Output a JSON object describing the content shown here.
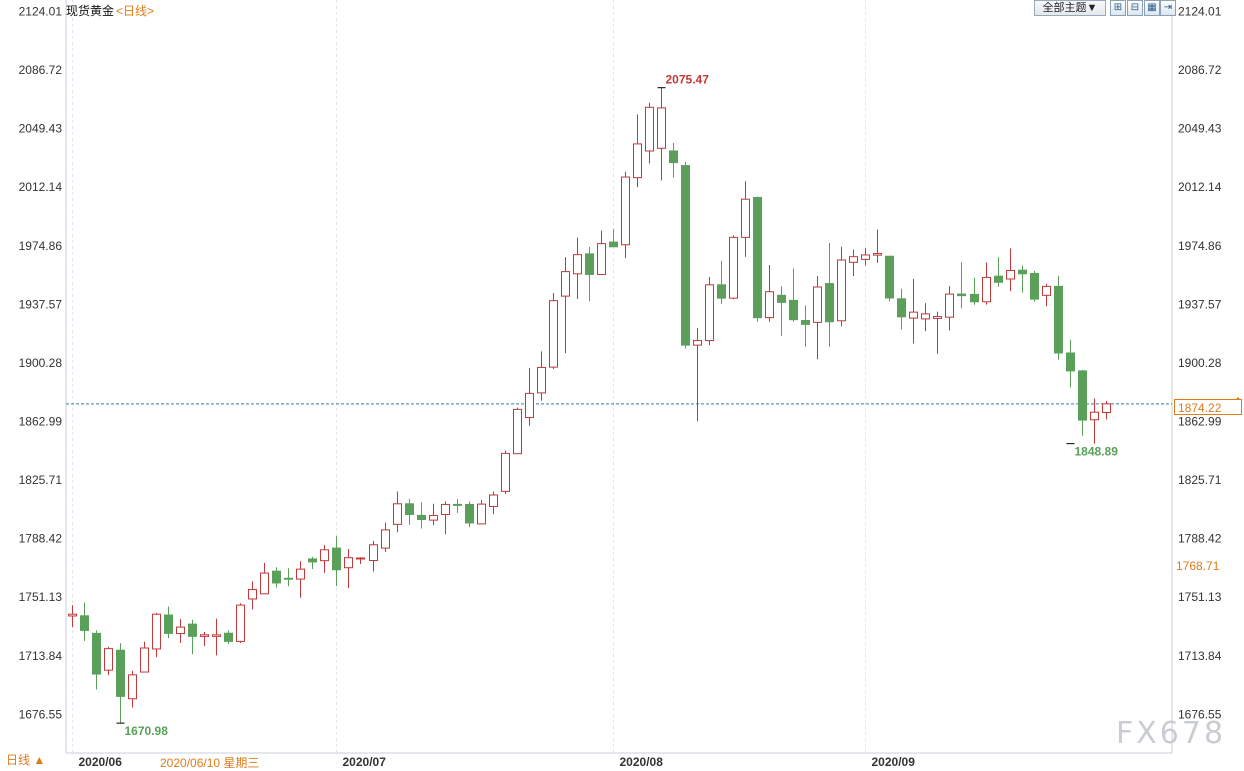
{
  "header": {
    "title": "现货黄金",
    "period_link": "<日线>",
    "theme_button": "全部主题▼",
    "tool_icons": [
      "zoom-in-icon",
      "zoom-out-icon",
      "grid-icon",
      "scroll-end-icon"
    ]
  },
  "footer": {
    "period_tab": "日线 ▲",
    "cursor_date": "2020/06/10 星期三",
    "watermark": "FX678"
  },
  "colors": {
    "up": "#c0393b",
    "down": "#5aa05a",
    "grid": "#dfe7ee",
    "axis_text": "#333333",
    "accent": "#e07b1a",
    "last_price_line": "#3a7fa8"
  },
  "chart_data": {
    "type": "candlestick",
    "title": "现货黄金",
    "ylim": [
      1651.96,
      2131.3
    ],
    "y_ticks": [
      2124.01,
      2086.72,
      2049.43,
      2012.14,
      1974.86,
      1937.57,
      1900.28,
      1862.99,
      1825.71,
      1788.42,
      1751.13,
      1713.84,
      1676.55
    ],
    "x_month_labels": [
      {
        "index": 0,
        "label": "2020/06"
      },
      {
        "index": 22,
        "label": "2020/07"
      },
      {
        "index": 45,
        "label": "2020/08"
      },
      {
        "index": 66,
        "label": "2020/09"
      }
    ],
    "last_price": 1874.22,
    "marker_price": 1768.71,
    "annotations": [
      {
        "index": 49,
        "label": "2075.47",
        "price": 2075.47,
        "color": "up"
      },
      {
        "index": 4,
        "label": "1670.98",
        "price": 1670.98,
        "color": "down"
      },
      {
        "index": 83,
        "label": "1848.89",
        "price": 1848.89,
        "color": "down"
      }
    ],
    "candles": [
      {
        "o": 1739.2,
        "h": 1746.0,
        "l": 1732.0,
        "c": 1740.3
      },
      {
        "o": 1739.3,
        "h": 1747.8,
        "l": 1723.3,
        "c": 1730.0
      },
      {
        "o": 1728.1,
        "h": 1730.0,
        "l": 1692.5,
        "c": 1702.2
      },
      {
        "o": 1704.7,
        "h": 1719.5,
        "l": 1701.5,
        "c": 1718.4
      },
      {
        "o": 1717.4,
        "h": 1721.9,
        "l": 1670.98,
        "c": 1688.0
      },
      {
        "o": 1686.5,
        "h": 1704.2,
        "l": 1680.9,
        "c": 1701.7
      },
      {
        "o": 1703.5,
        "h": 1722.8,
        "l": 1703.5,
        "c": 1718.8
      },
      {
        "o": 1718.2,
        "h": 1741.1,
        "l": 1712.9,
        "c": 1740.3
      },
      {
        "o": 1739.8,
        "h": 1745.1,
        "l": 1725.0,
        "c": 1728.1
      },
      {
        "o": 1728.0,
        "h": 1737.2,
        "l": 1722.0,
        "c": 1732.1
      },
      {
        "o": 1734.0,
        "h": 1736.8,
        "l": 1714.8,
        "c": 1726.2
      },
      {
        "o": 1726.2,
        "h": 1729.1,
        "l": 1720.1,
        "c": 1727.2
      },
      {
        "o": 1726.2,
        "h": 1737.4,
        "l": 1714.1,
        "c": 1727.2
      },
      {
        "o": 1728.2,
        "h": 1730.0,
        "l": 1721.3,
        "c": 1723.0
      },
      {
        "o": 1723.0,
        "h": 1747.3,
        "l": 1722.0,
        "c": 1746.1
      },
      {
        "o": 1750.0,
        "h": 1761.3,
        "l": 1743.2,
        "c": 1756.0
      },
      {
        "o": 1753.3,
        "h": 1773.0,
        "l": 1753.3,
        "c": 1766.5
      },
      {
        "o": 1767.7,
        "h": 1770.2,
        "l": 1757.2,
        "c": 1760.2
      },
      {
        "o": 1763.2,
        "h": 1769.6,
        "l": 1758.1,
        "c": 1762.7
      },
      {
        "o": 1762.7,
        "h": 1774.1,
        "l": 1750.8,
        "c": 1769.0
      },
      {
        "o": 1775.5,
        "h": 1776.8,
        "l": 1769.1,
        "c": 1773.6
      },
      {
        "o": 1774.4,
        "h": 1784.3,
        "l": 1766.6,
        "c": 1781.3
      },
      {
        "o": 1782.4,
        "h": 1789.9,
        "l": 1758.2,
        "c": 1768.6
      },
      {
        "o": 1769.9,
        "h": 1781.8,
        "l": 1757.0,
        "c": 1776.3
      },
      {
        "o": 1776.1,
        "h": 1776.6,
        "l": 1772.3,
        "c": 1776.1
      },
      {
        "o": 1774.5,
        "h": 1787.0,
        "l": 1767.5,
        "c": 1784.5
      },
      {
        "o": 1782.4,
        "h": 1798.6,
        "l": 1780.0,
        "c": 1794.0
      },
      {
        "o": 1797.5,
        "h": 1818.4,
        "l": 1792.5,
        "c": 1810.6
      },
      {
        "o": 1810.6,
        "h": 1813.6,
        "l": 1797.2,
        "c": 1803.8
      },
      {
        "o": 1803.2,
        "h": 1811.6,
        "l": 1794.9,
        "c": 1800.6
      },
      {
        "o": 1800.2,
        "h": 1810.6,
        "l": 1796.9,
        "c": 1803.2
      },
      {
        "o": 1803.8,
        "h": 1812.2,
        "l": 1791.2,
        "c": 1810.2
      },
      {
        "o": 1810.2,
        "h": 1813.6,
        "l": 1804.8,
        "c": 1810.1
      },
      {
        "o": 1810.2,
        "h": 1812.1,
        "l": 1795.7,
        "c": 1798.4
      },
      {
        "o": 1797.8,
        "h": 1813.1,
        "l": 1797.8,
        "c": 1810.4
      },
      {
        "o": 1808.9,
        "h": 1818.4,
        "l": 1804.0,
        "c": 1816.2
      },
      {
        "o": 1818.5,
        "h": 1844.5,
        "l": 1816.8,
        "c": 1842.7
      },
      {
        "o": 1842.5,
        "h": 1871.8,
        "l": 1842.5,
        "c": 1870.7
      },
      {
        "o": 1865.5,
        "h": 1897.1,
        "l": 1860.3,
        "c": 1880.9
      },
      {
        "o": 1881.2,
        "h": 1907.6,
        "l": 1876.2,
        "c": 1897.4
      },
      {
        "o": 1897.6,
        "h": 1944.8,
        "l": 1896.4,
        "c": 1939.9
      },
      {
        "o": 1942.8,
        "h": 1967.6,
        "l": 1906.6,
        "c": 1958.4
      },
      {
        "o": 1957.0,
        "h": 1980.0,
        "l": 1941.0,
        "c": 1969.2
      },
      {
        "o": 1969.7,
        "h": 1974.1,
        "l": 1939.5,
        "c": 1956.6
      },
      {
        "o": 1956.6,
        "h": 1984.6,
        "l": 1956.3,
        "c": 1976.2
      },
      {
        "o": 1977.2,
        "h": 1985.4,
        "l": 1975.5,
        "c": 1974.2
      },
      {
        "o": 1975.5,
        "h": 2022.0,
        "l": 1967.1,
        "c": 2018.6
      },
      {
        "o": 2018.2,
        "h": 2058.5,
        "l": 2012.1,
        "c": 2039.7
      },
      {
        "o": 2035.2,
        "h": 2066.0,
        "l": 2027.2,
        "c": 2063.0
      },
      {
        "o": 2036.9,
        "h": 2075.47,
        "l": 2016.5,
        "c": 2062.6
      },
      {
        "o": 2035.2,
        "h": 2040.3,
        "l": 2018.2,
        "c": 2027.8
      },
      {
        "o": 2025.9,
        "h": 2028.2,
        "l": 1909.4,
        "c": 1911.6
      },
      {
        "o": 1911.6,
        "h": 1922.5,
        "l": 1863.2,
        "c": 1914.5
      },
      {
        "o": 1914.5,
        "h": 1955.0,
        "l": 1911.6,
        "c": 1950.0
      },
      {
        "o": 1950.0,
        "h": 1965.3,
        "l": 1937.9,
        "c": 1941.5
      },
      {
        "o": 1941.5,
        "h": 1981.5,
        "l": 1940.8,
        "c": 1980.2
      },
      {
        "o": 1980.2,
        "h": 2016.0,
        "l": 1967.8,
        "c": 2004.5
      },
      {
        "o": 2005.6,
        "h": 2006.2,
        "l": 1926.5,
        "c": 1929.1
      },
      {
        "o": 1929.1,
        "h": 1962.6,
        "l": 1926.5,
        "c": 1945.6
      },
      {
        "o": 1943.3,
        "h": 1949.1,
        "l": 1917.5,
        "c": 1938.8
      },
      {
        "o": 1940.1,
        "h": 1960.4,
        "l": 1926.5,
        "c": 1927.8
      },
      {
        "o": 1927.3,
        "h": 1936.9,
        "l": 1910.5,
        "c": 1924.8
      },
      {
        "o": 1926.1,
        "h": 1955.6,
        "l": 1902.6,
        "c": 1948.6
      },
      {
        "o": 1950.8,
        "h": 1976.6,
        "l": 1910.5,
        "c": 1926.5
      },
      {
        "o": 1927.1,
        "h": 1974.3,
        "l": 1923.5,
        "c": 1965.8
      },
      {
        "o": 1964.3,
        "h": 1972.5,
        "l": 1955.6,
        "c": 1967.9
      },
      {
        "o": 1966.2,
        "h": 1973.3,
        "l": 1962.3,
        "c": 1969.0
      },
      {
        "o": 1968.9,
        "h": 1985.2,
        "l": 1963.9,
        "c": 1969.9
      },
      {
        "o": 1968.2,
        "h": 1968.2,
        "l": 1939.4,
        "c": 1941.6
      },
      {
        "o": 1941.1,
        "h": 1947.5,
        "l": 1921.6,
        "c": 1929.6
      },
      {
        "o": 1928.8,
        "h": 1953.7,
        "l": 1912.6,
        "c": 1932.6
      },
      {
        "o": 1928.3,
        "h": 1938.3,
        "l": 1920.4,
        "c": 1931.5
      },
      {
        "o": 1928.6,
        "h": 1932.9,
        "l": 1906.1,
        "c": 1929.8
      },
      {
        "o": 1929.4,
        "h": 1949.2,
        "l": 1920.9,
        "c": 1944.1
      },
      {
        "o": 1944.1,
        "h": 1964.4,
        "l": 1935.0,
        "c": 1943.1
      },
      {
        "o": 1943.9,
        "h": 1954.4,
        "l": 1937.3,
        "c": 1939.2
      },
      {
        "o": 1939.2,
        "h": 1964.2,
        "l": 1937.4,
        "c": 1954.7
      },
      {
        "o": 1955.5,
        "h": 1967.6,
        "l": 1948.7,
        "c": 1951.6
      },
      {
        "o": 1953.7,
        "h": 1973.2,
        "l": 1946.0,
        "c": 1959.1
      },
      {
        "o": 1959.3,
        "h": 1962.2,
        "l": 1945.0,
        "c": 1957.0
      },
      {
        "o": 1957.2,
        "h": 1958.8,
        "l": 1939.2,
        "c": 1940.9
      },
      {
        "o": 1943.3,
        "h": 1950.6,
        "l": 1936.4,
        "c": 1949.0
      },
      {
        "o": 1949.0,
        "h": 1955.8,
        "l": 1902.3,
        "c": 1906.6
      },
      {
        "o": 1906.6,
        "h": 1915.0,
        "l": 1884.7,
        "c": 1895.2
      },
      {
        "o": 1895.2,
        "h": 1895.8,
        "l": 1853.9,
        "c": 1863.9
      },
      {
        "o": 1864.1,
        "h": 1877.7,
        "l": 1848.89,
        "c": 1868.9
      },
      {
        "o": 1868.7,
        "h": 1876.0,
        "l": 1864.3,
        "c": 1874.22
      }
    ]
  }
}
